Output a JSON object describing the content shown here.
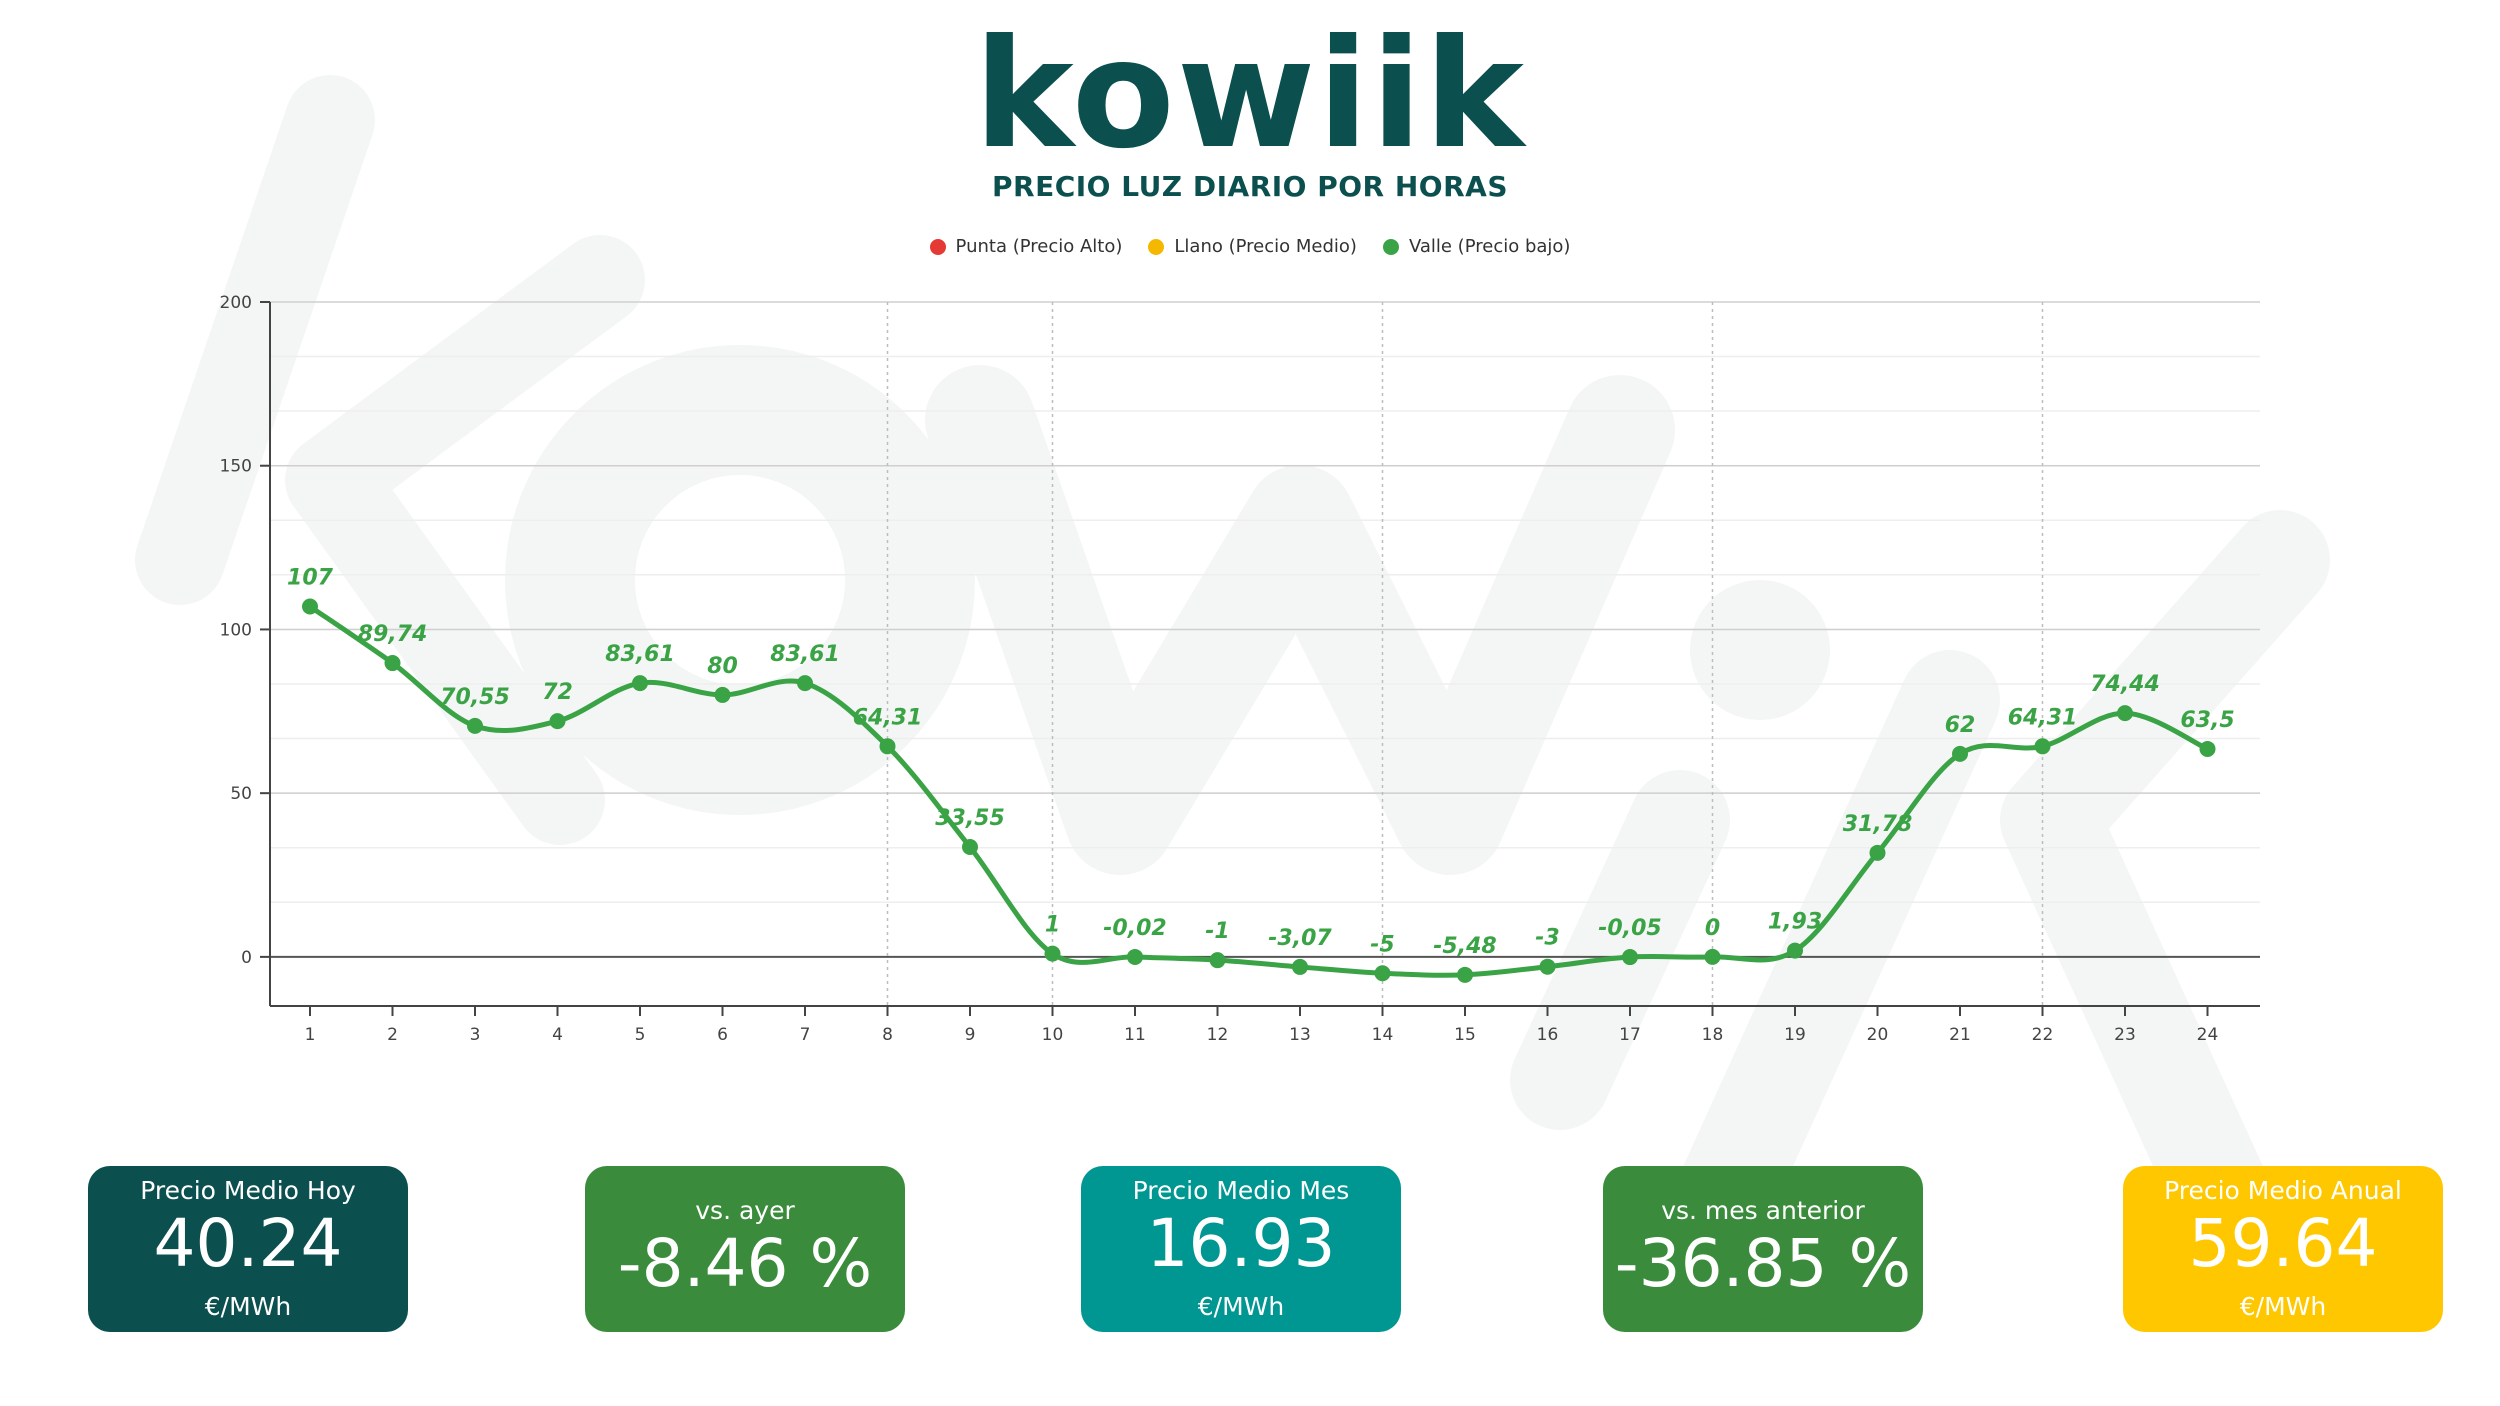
{
  "logo": {
    "text": "kowiik"
  },
  "title": "PRECIO LUZ DIARIO POR HORAS",
  "legend": [
    {
      "label": "Punta (Precio Alto)",
      "color": "#e53935"
    },
    {
      "label": "Llano (Precio Medio)",
      "color": "#f5b800"
    },
    {
      "label": "Valle (Precio bajo)",
      "color": "#3aa346"
    }
  ],
  "chart_data": {
    "type": "line",
    "x": [
      1,
      2,
      3,
      4,
      5,
      6,
      7,
      8,
      9,
      10,
      11,
      12,
      13,
      14,
      15,
      16,
      17,
      18,
      19,
      20,
      21,
      22,
      23,
      24
    ],
    "series": [
      {
        "name": "Valle (Precio bajo)",
        "color": "#3aa346",
        "values": [
          107,
          89.74,
          70.55,
          72,
          83.61,
          80,
          83.61,
          64.31,
          33.55,
          1,
          -0.02,
          -1,
          -3.07,
          -5,
          -5.48,
          -3,
          -0.05,
          0,
          1.93,
          31.78,
          62,
          64.31,
          74.44,
          63.5
        ],
        "labels": [
          "107",
          "89,74",
          "70,55",
          "72",
          "83,61",
          "80",
          "83,61",
          "64,31",
          "33,55",
          "1",
          "-0,02",
          "-1",
          "-3,07",
          "-5",
          "-5,48",
          "-3",
          "-0,05",
          "0",
          "1,93",
          "31,78",
          "62",
          "64,31",
          "74,44",
          "63,5"
        ]
      }
    ],
    "ylim": [
      -15,
      200
    ],
    "yticks": [
      0,
      50,
      100,
      150,
      200
    ],
    "ygrid": true,
    "xgrid_lines": [
      8,
      10,
      14,
      18,
      22
    ],
    "legend": "top-center"
  },
  "cards": [
    {
      "title": "Precio Medio Hoy",
      "value": "40.24",
      "unit": "€/MWh",
      "color": "#0b4f4f"
    },
    {
      "title": "vs. ayer",
      "value": "-8.46 %",
      "color": "#3a8c3c"
    },
    {
      "title": "Precio Medio Mes",
      "value": "16.93",
      "unit": "€/MWh",
      "color": "#009692"
    },
    {
      "title": "vs. mes anterior",
      "value": "-36.85 %",
      "color": "#3a8c3c"
    },
    {
      "title": "Precio Medio Anual",
      "value": "59.64",
      "unit": "€/MWh",
      "color": "#ffc700"
    }
  ]
}
